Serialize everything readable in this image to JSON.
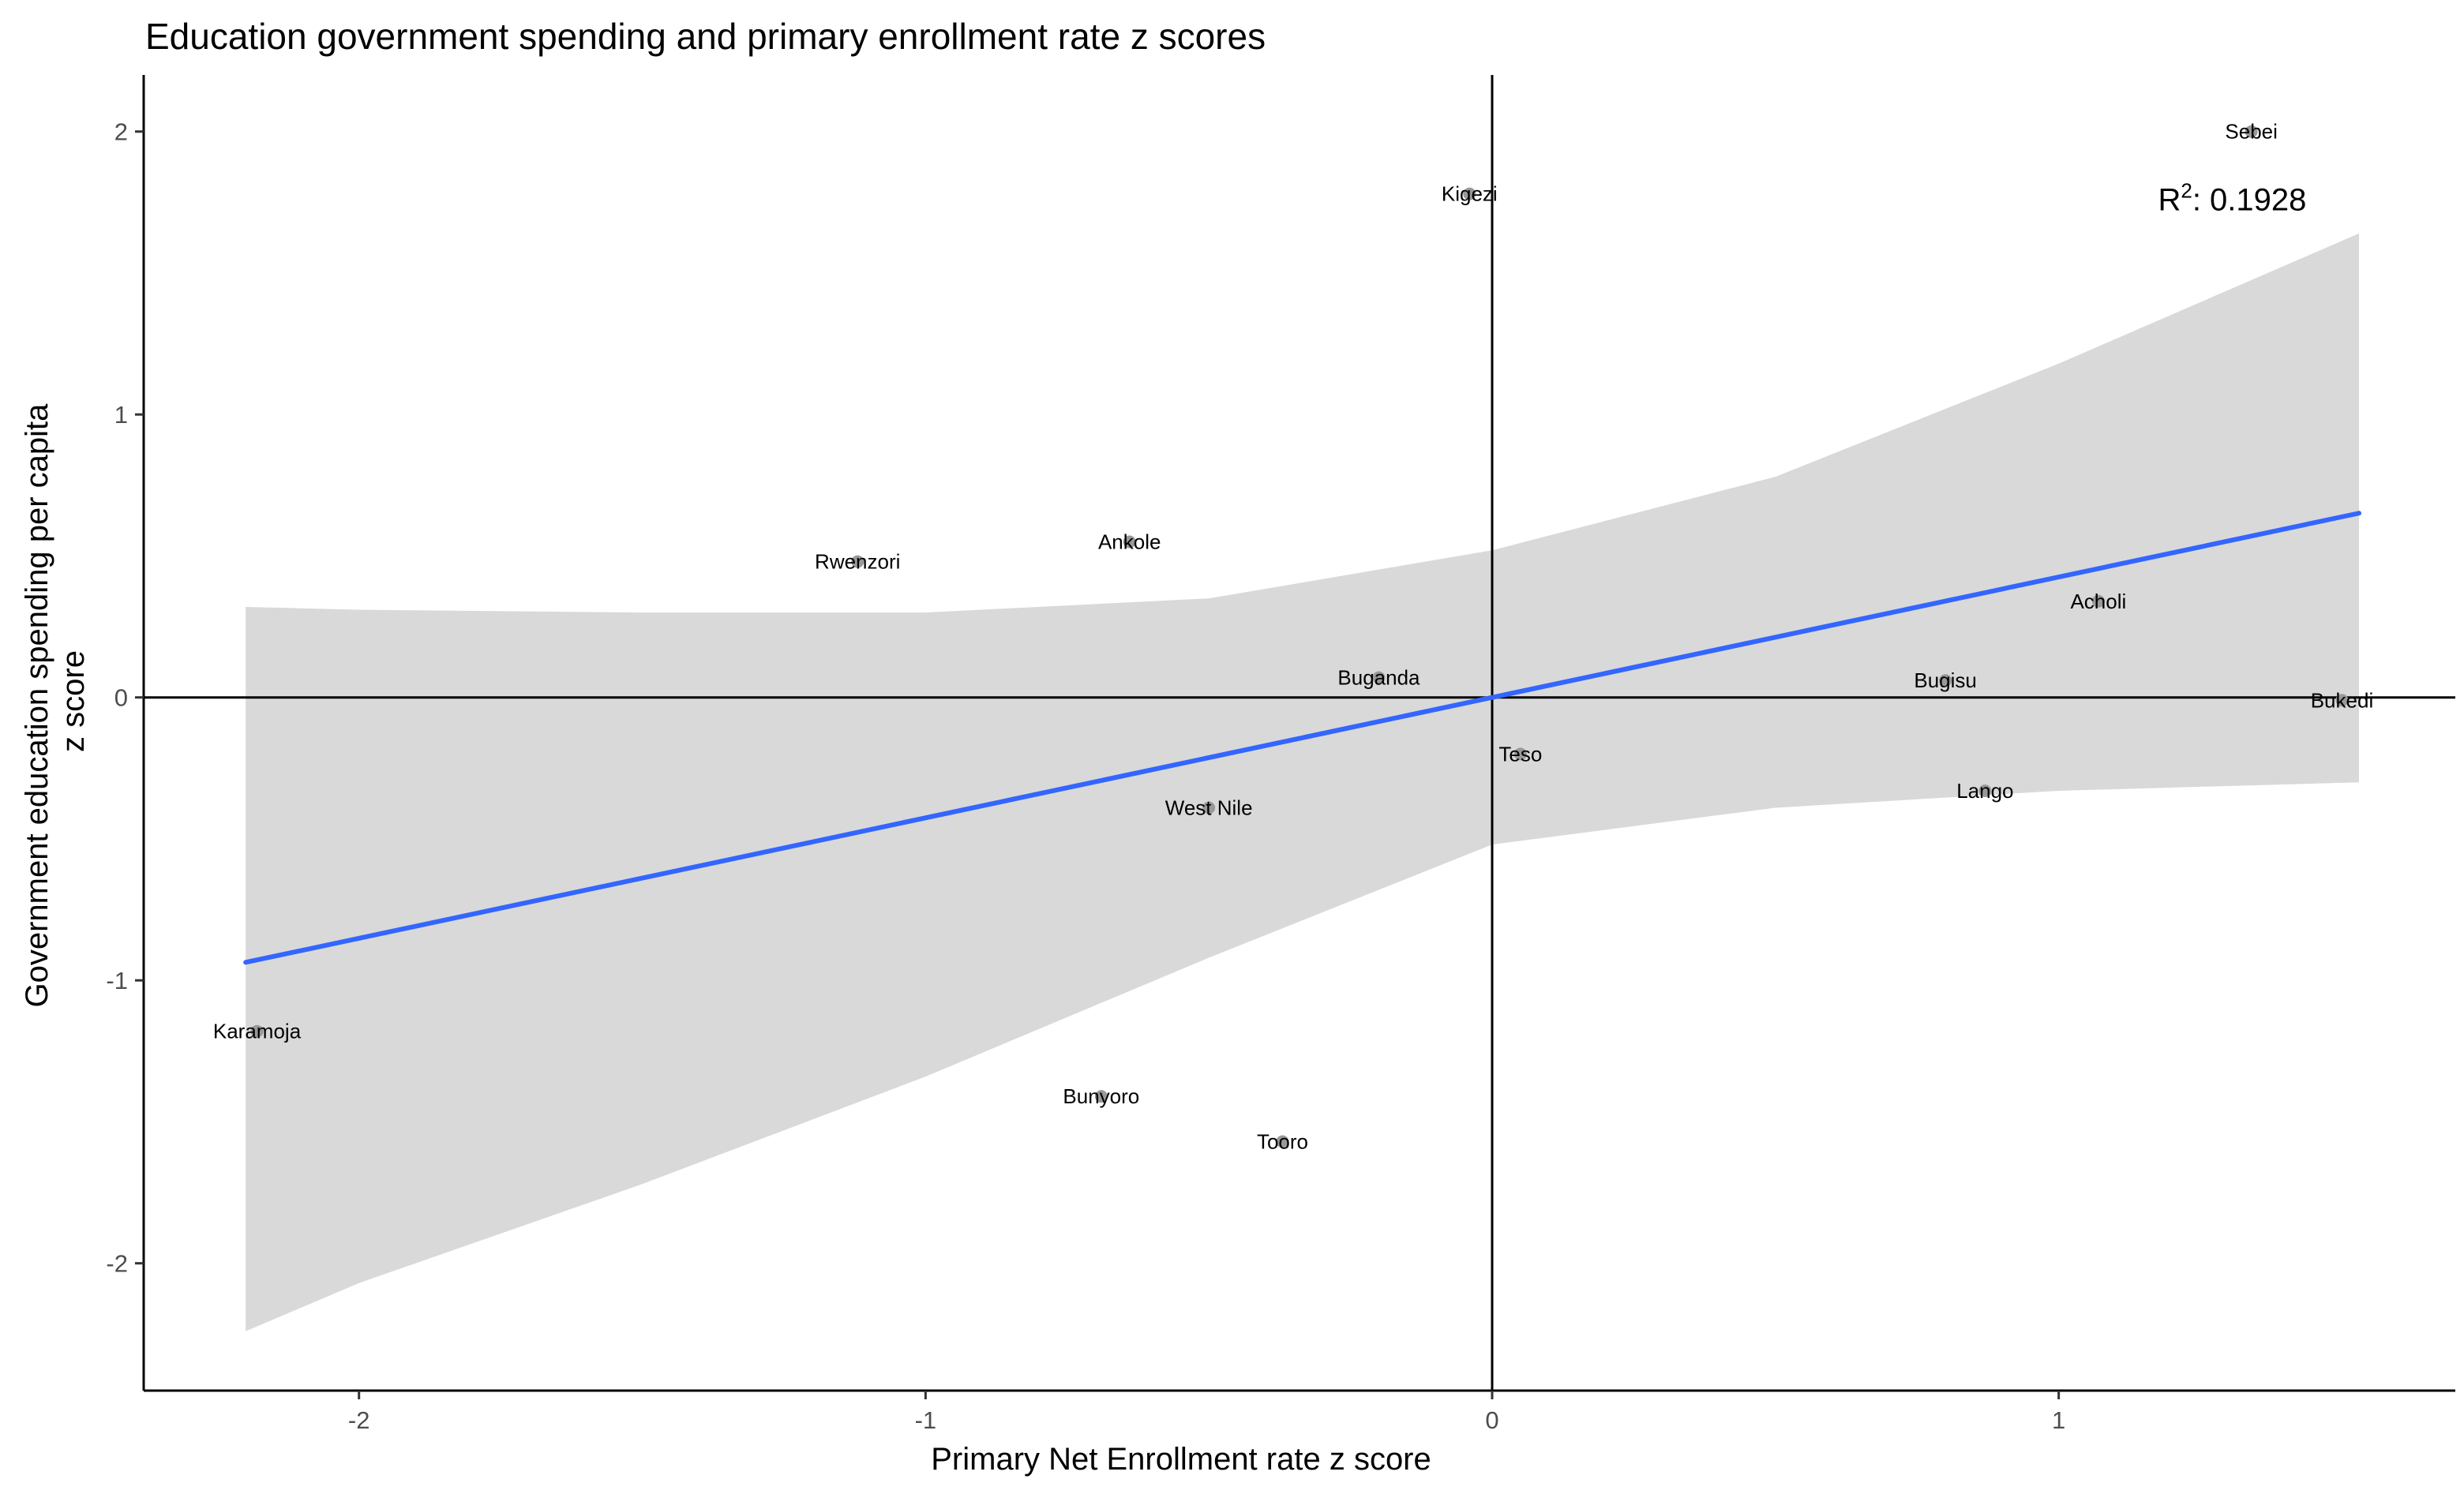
{
  "chart_data": {
    "type": "scatter",
    "title": "Education government spending and primary enrollment rate z scores",
    "xlabel": "Primary Net Enrollment rate z score",
    "ylabel_lines": [
      "Government education spending per capita",
      "z score"
    ],
    "xlim": [
      -2.38,
      1.7
    ],
    "ylim": [
      -2.45,
      2.2
    ],
    "x_ticks": [
      -2,
      -1,
      0,
      1
    ],
    "y_ticks": [
      -2,
      -1,
      0,
      1,
      2
    ],
    "x_tick_labels": [
      "-2",
      "-1",
      "0",
      "1"
    ],
    "y_tick_labels": [
      "-2",
      "-1",
      "0",
      "1",
      "2"
    ],
    "grid": false,
    "reference_lines": {
      "x": 0,
      "y": 0
    },
    "points": [
      {
        "name": "Sebei",
        "x": 1.34,
        "y": 2.0
      },
      {
        "name": "Kigezi",
        "x": -0.04,
        "y": 1.78
      },
      {
        "name": "Ankole",
        "x": -0.64,
        "y": 0.55
      },
      {
        "name": "Rwenzori",
        "x": -1.12,
        "y": 0.48
      },
      {
        "name": "Acholi",
        "x": 1.07,
        "y": 0.34
      },
      {
        "name": "Buganda",
        "x": -0.2,
        "y": 0.07
      },
      {
        "name": "Bugisu",
        "x": 0.8,
        "y": 0.06
      },
      {
        "name": "Bukedi",
        "x": 1.5,
        "y": -0.01
      },
      {
        "name": "Teso",
        "x": 0.05,
        "y": -0.2
      },
      {
        "name": "Lango",
        "x": 0.87,
        "y": -0.33
      },
      {
        "name": "West Nile",
        "x": -0.5,
        "y": -0.39
      },
      {
        "name": "Karamoja",
        "x": -2.18,
        "y": -1.18
      },
      {
        "name": "Bunyoro",
        "x": -0.69,
        "y": -1.41
      },
      {
        "name": "Tooro",
        "x": -0.37,
        "y": -1.57
      }
    ],
    "fit": {
      "type": "linear",
      "slope": 0.4256,
      "intercept": 0.0,
      "x_range": [
        -2.2,
        1.53
      ],
      "color": "#3366FF",
      "confidence_band": {
        "x": [
          -2.2,
          -2.0,
          -1.5,
          -1.0,
          -0.5,
          0.0,
          0.5,
          1.0,
          1.53
        ],
        "lower": [
          -2.24,
          -2.07,
          -1.72,
          -1.34,
          -0.92,
          -0.52,
          -0.39,
          -0.33,
          -0.3
        ],
        "upper": [
          0.32,
          0.31,
          0.3,
          0.3,
          0.35,
          0.52,
          0.78,
          1.18,
          1.64
        ],
        "color": "#D9D9D9"
      }
    },
    "annotation": {
      "base": "R",
      "superscript": "2",
      "text": ": 0.1928",
      "x": 1.27,
      "y": 1.75
    },
    "point_color": "#999999",
    "axis_color": "#000000"
  }
}
